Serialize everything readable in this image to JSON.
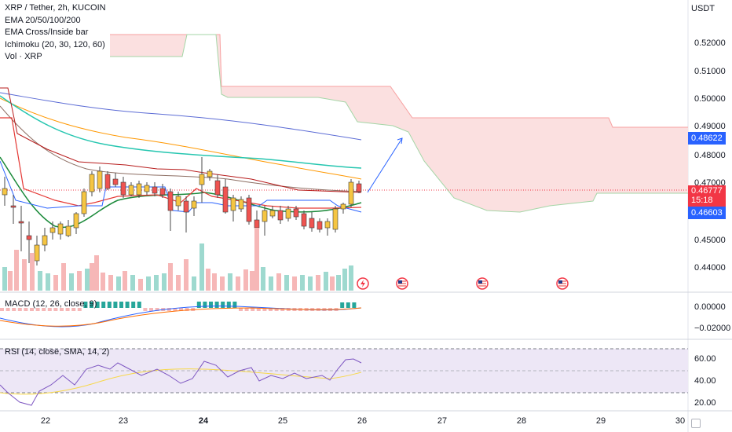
{
  "legend": {
    "title": "XRP / Tether, 2h, KUCOIN",
    "indicators": [
      "EMA 20/50/100/200",
      "EMA Cross/Inside bar",
      "Ichimoku (20, 30, 120, 60)",
      "Vol · XRP"
    ]
  },
  "price_axis": {
    "unit": "USDT",
    "ticks": [
      "0.52000",
      "0.51000",
      "0.50000",
      "0.49000",
      "0.48000",
      "0.47000",
      "0.45000",
      "0.44000"
    ]
  },
  "tags": {
    "price": "0.46777",
    "countdown": "15:18",
    "upper": "0.48622",
    "lower": "0.46603"
  },
  "macd": {
    "label": "MACD (12, 26, close, 9)",
    "ticks": [
      "0.00000",
      "−0.02000"
    ]
  },
  "rsi": {
    "label": "RSI (14, close, SMA, 14, 2)",
    "ticks": [
      "60.00",
      "40.00",
      "20.00"
    ]
  },
  "time_axis": {
    "ticks": [
      "22",
      "23",
      "24",
      "25",
      "26",
      "27",
      "28",
      "29",
      "30"
    ],
    "bold": "24"
  },
  "events": [
    "lightning-icon",
    "us-flag-icon",
    "us-flag-icon",
    "us-flag-icon"
  ],
  "colors": {
    "up": "#26a69a",
    "down": "#ef5350",
    "candle_up": "#f5c542",
    "candle_down": "#ef5350",
    "ema20": "#1b8a3a",
    "ema50": "#26c6b0",
    "ema100": "#ff9800",
    "ema200": "#5b6bd5",
    "cloud_fill": "#fbe0e0",
    "rsi_band": "#ede7f6",
    "rsi_line": "#7e57c2",
    "rsi_sma": "#f7d84a",
    "price_tag": "#f23645",
    "blue_tag": "#2962ff"
  }
}
